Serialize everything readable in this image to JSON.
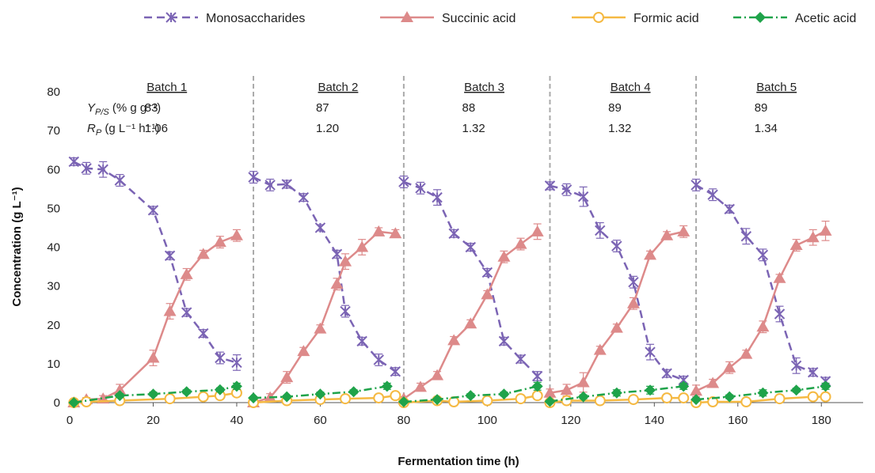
{
  "chart_data": {
    "type": "line",
    "xlabel": "Fermentation time (h)",
    "ylabel": "Concentration (g L⁻¹)",
    "xlim": [
      0,
      190
    ],
    "ylim": [
      0,
      80
    ],
    "x_ticks": [
      "0",
      "20",
      "40",
      "60",
      "80",
      "100",
      "120",
      "140",
      "160",
      "180"
    ],
    "x_tick_values": [
      0,
      20,
      40,
      60,
      80,
      100,
      120,
      140,
      160,
      180
    ],
    "y_ticks": [
      0,
      10,
      20,
      30,
      40,
      50,
      60,
      70,
      80
    ],
    "grid": false,
    "legend_position": "top",
    "batch_boundaries": [
      44,
      80,
      115,
      150
    ],
    "row_labels": {
      "yield": "Y_P/S (% g g⁻¹)",
      "rate": "R_P (g L⁻¹ h⁻¹)"
    },
    "batches": [
      {
        "label": "Batch 1",
        "center": 21,
        "yield": "83",
        "rate": "1.06"
      },
      {
        "label": "Batch 2",
        "center": 62,
        "yield": "87",
        "rate": "1.20"
      },
      {
        "label": "Batch 3",
        "center": 97,
        "yield": "88",
        "rate": "1.32"
      },
      {
        "label": "Batch 4",
        "center": 132,
        "yield": "89",
        "rate": "1.32"
      },
      {
        "label": "Batch 5",
        "center": 167,
        "yield": "89",
        "rate": "1.34"
      }
    ],
    "series": [
      {
        "name": "Monosaccharides",
        "color": "#7b64b4",
        "marker": "asterisk",
        "dash": "dash",
        "segments": [
          {
            "x": [
              1,
              4,
              8,
              12,
              20,
              24,
              28,
              32,
              36,
              40
            ],
            "y": [
              62,
              60.3,
              60,
              57.2,
              49.5,
              37.8,
              23.2,
              17.8,
              11.5,
              10.3
            ],
            "err": [
              1,
              1.5,
              2,
              1.5,
              1,
              1,
              1,
              1,
              1.5,
              2
            ]
          },
          {
            "x": [
              44,
              48,
              52,
              56,
              60,
              64,
              66,
              70,
              74,
              78
            ],
            "y": [
              58,
              56,
              56.2,
              52.8,
              45,
              38.2,
              23.5,
              15.8,
              11,
              8
            ],
            "err": [
              1.5,
              1.5,
              1,
              1,
              0.8,
              1,
              1.5,
              1,
              1.5,
              1
            ]
          },
          {
            "x": [
              80,
              84,
              88,
              92,
              96,
              100,
              104,
              108,
              112
            ],
            "y": [
              56.8,
              55.2,
              52.8,
              43.5,
              40,
              33.5,
              15.8,
              11.2,
              6.8
            ],
            "err": [
              1.5,
              1.5,
              2,
              1,
              1,
              1,
              1,
              1,
              1.2
            ]
          },
          {
            "x": [
              115,
              119,
              123,
              127,
              131,
              135,
              139,
              143,
              147
            ],
            "y": [
              55.8,
              54.8,
              53,
              44.3,
              40.3,
              31,
              13,
              7.5,
              5.8
            ],
            "err": [
              1,
              1.5,
              2.5,
              2,
              1.5,
              1.5,
              2,
              1,
              1
            ]
          },
          {
            "x": [
              150,
              154,
              158,
              162,
              166,
              170,
              174,
              178
            ],
            "y": [
              56,
              53.5,
              49.8,
              42.8,
              38,
              22.8,
              9.5,
              7.8
            ],
            "err": [
              1.5,
              1.5,
              1,
              2,
              1.5,
              2,
              2,
              1
            ]
          },
          {
            "x": [
              181
            ],
            "y": [
              5.5
            ],
            "err": [
              1
            ]
          }
        ]
      },
      {
        "name": "Succinic acid",
        "color": "#dd8a8a",
        "marker": "triangle",
        "dash": "solid",
        "segments": [
          {
            "x": [
              1,
              4,
              8,
              12,
              20,
              24,
              28,
              32,
              36,
              40
            ],
            "y": [
              0,
              0.8,
              1,
              3.2,
              11.5,
              23.5,
              33,
              38.2,
              41.3,
              43
            ],
            "err": [
              0.3,
              0.5,
              0.8,
              1.5,
              2,
              2,
              1.5,
              1,
              1.5,
              1.5
            ]
          },
          {
            "x": [
              44,
              48,
              52,
              56,
              60,
              64,
              66,
              70,
              74,
              78
            ],
            "y": [
              0,
              1.3,
              6.5,
              13.2,
              19,
              30.5,
              36.3,
              40,
              44,
              43.5
            ],
            "err": [
              0.3,
              1,
              1.5,
              1,
              1,
              1.5,
              2,
              2,
              1,
              1
            ]
          },
          {
            "x": [
              80,
              84,
              88,
              92,
              96,
              100,
              104,
              108,
              112
            ],
            "y": [
              1,
              4,
              7,
              16,
              20.3,
              27.8,
              37.5,
              40.8,
              44
            ],
            "err": [
              0.5,
              1,
              1,
              1,
              1,
              1,
              1.5,
              1.5,
              2
            ]
          },
          {
            "x": [
              115,
              119,
              123,
              127,
              131,
              135,
              139,
              143,
              147
            ],
            "y": [
              2.5,
              3.2,
              5.2,
              13.5,
              19.2,
              25.5,
              38,
              43,
              44
            ],
            "err": [
              1,
              1.5,
              2.5,
              1,
              1,
              1.5,
              1,
              1,
              1.5
            ]
          },
          {
            "x": [
              150,
              154,
              158,
              162,
              166,
              170,
              174,
              178,
              181
            ],
            "y": [
              3,
              5,
              9,
              12.5,
              19.5,
              32,
              40.5,
              42.5,
              44.2
            ],
            "err": [
              1.5,
              1,
              1.5,
              1,
              1.5,
              1,
              1.5,
              2,
              2.5
            ]
          }
        ]
      },
      {
        "name": "Formic acid",
        "color": "#f5b942",
        "marker": "circle",
        "dash": "solid",
        "segments": [
          {
            "x": [
              1,
              4,
              12,
              24,
              32,
              36,
              40
            ],
            "y": [
              0,
              0.2,
              0.5,
              1,
              1.5,
              1.8,
              2.5
            ],
            "err": [
              0.2,
              0.2,
              0.3,
              0.3,
              0.4,
              0.4,
              0.5
            ]
          },
          {
            "x": [
              44,
              52,
              60,
              66,
              74,
              78
            ],
            "y": [
              0,
              0.5,
              0.8,
              1,
              1.2,
              1.8
            ],
            "err": [
              0.2,
              0.3,
              0.3,
              0.3,
              0.3,
              0.5
            ]
          },
          {
            "x": [
              80,
              88,
              92,
              100,
              108,
              112
            ],
            "y": [
              0,
              0.5,
              0.2,
              0.5,
              1,
              1.8
            ],
            "err": [
              0.2,
              0.3,
              0.2,
              0.3,
              0.4,
              0.5
            ]
          },
          {
            "x": [
              115,
              119,
              127,
              135,
              143,
              147
            ],
            "y": [
              0,
              0.5,
              0.5,
              0.8,
              1.2,
              1.2
            ],
            "err": [
              0.2,
              0.3,
              0.3,
              0.3,
              0.4,
              0.4
            ]
          },
          {
            "x": [
              150,
              154,
              162,
              170,
              178,
              181
            ],
            "y": [
              0,
              0.2,
              0.2,
              1,
              1.5,
              1.5
            ],
            "err": [
              0.2,
              0.2,
              0.2,
              0.3,
              0.4,
              0.4
            ]
          }
        ]
      },
      {
        "name": "Acetic acid",
        "color": "#1fa34a",
        "marker": "diamond",
        "dash": "dashdot",
        "segments": [
          {
            "x": [
              1,
              12,
              20,
              28,
              36,
              40
            ],
            "y": [
              0,
              1.8,
              2.2,
              2.8,
              3.3,
              4.2
            ],
            "err": [
              0.3,
              0.5,
              0.5,
              0.5,
              0.5,
              0.8
            ]
          },
          {
            "x": [
              44,
              52,
              60,
              68,
              76
            ],
            "y": [
              1.2,
              1.5,
              2.2,
              2.8,
              4.2
            ],
            "err": [
              0.3,
              0.3,
              0.5,
              0.5,
              0.8
            ]
          },
          {
            "x": [
              80,
              88,
              96,
              104,
              112
            ],
            "y": [
              0.2,
              0.8,
              1.8,
              2.2,
              4.2
            ],
            "err": [
              0.2,
              0.3,
              0.5,
              0.5,
              1
            ]
          },
          {
            "x": [
              115,
              123,
              131,
              139,
              147
            ],
            "y": [
              0.3,
              1.5,
              2.5,
              3.2,
              4.2
            ],
            "err": [
              0.2,
              0.5,
              0.8,
              1,
              0.8
            ]
          },
          {
            "x": [
              150,
              158,
              166,
              174,
              181
            ],
            "y": [
              0.8,
              1.5,
              2.5,
              3.2,
              4.2
            ],
            "err": [
              0.3,
              0.5,
              0.8,
              0.5,
              0.8
            ]
          }
        ]
      }
    ]
  }
}
